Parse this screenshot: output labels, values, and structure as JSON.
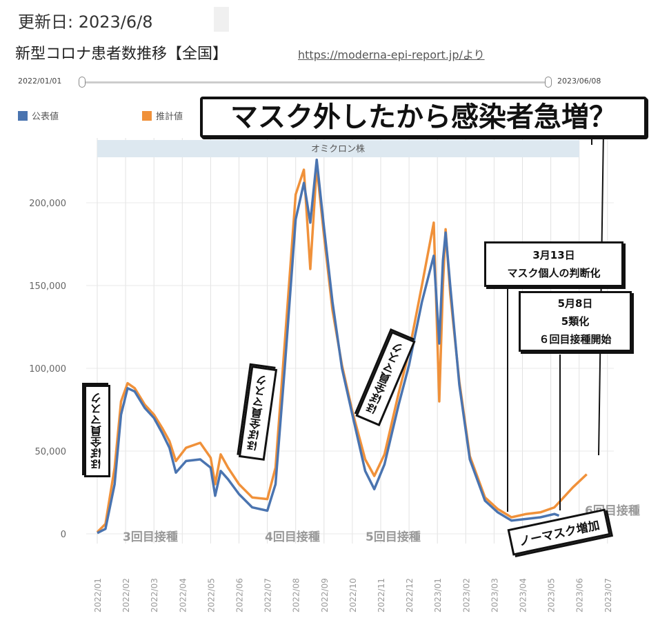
{
  "header": {
    "updated": "更新日: 2023/6/8",
    "title": "新型コロナ患者数推移【全国】",
    "source": "https://moderna-epi-report.jp/より"
  },
  "range": {
    "start": "2022/01/01",
    "end": "2023/06/08"
  },
  "headline": "マスク外したから感染者急増？",
  "annotations": {
    "band": "オミクロン株",
    "mask1": "ほぼ全員マスク",
    "mask2": "ほぼ全員マスク",
    "mask3": "ほぼ全員マスク",
    "dose3": "3回目接種",
    "dose4": "4回目接種",
    "dose5": "5回目接種",
    "dose6": "6回目接種",
    "box1": [
      "3月13日",
      "マスク個人の判断化"
    ],
    "box2": [
      "5月8日",
      "5類化",
      "６回目接種開始"
    ],
    "nomask": "ノーマスク増加"
  },
  "colors": {
    "official": "#4a74b0",
    "estimated": "#f0913a"
  },
  "chart_data": {
    "type": "line",
    "legend_position": "top-left",
    "grid": true,
    "ylim": [
      0,
      240000
    ],
    "yticks": [
      "0",
      "50,000",
      "100,000",
      "150,000",
      "200,000"
    ],
    "ytick_values": [
      0,
      50000,
      100000,
      150000,
      200000
    ],
    "xticks": [
      "2022/01",
      "2022/02",
      "2022/03",
      "2022/04",
      "2022/05",
      "2022/06",
      "2022/07",
      "2022/08",
      "2022/09",
      "2022/10",
      "2022/11",
      "2022/12",
      "2023/01",
      "2023/02",
      "2023/03",
      "2023/04",
      "2023/05",
      "2023/06",
      "2023/07"
    ],
    "series": [
      {
        "name": "公表値",
        "x": [
          "2022-01-01",
          "2022-01-10",
          "2022-01-20",
          "2022-01-27",
          "2022-02-03",
          "2022-02-10",
          "2022-02-20",
          "2022-03-01",
          "2022-03-10",
          "2022-03-18",
          "2022-03-25",
          "2022-04-05",
          "2022-04-20",
          "2022-05-01",
          "2022-05-06",
          "2022-05-12",
          "2022-05-20",
          "2022-06-01",
          "2022-06-15",
          "2022-07-01",
          "2022-07-10",
          "2022-07-20",
          "2022-08-01",
          "2022-08-10",
          "2022-08-17",
          "2022-08-24",
          "2022-09-01",
          "2022-09-10",
          "2022-09-20",
          "2022-10-01",
          "2022-10-15",
          "2022-10-25",
          "2022-11-05",
          "2022-11-20",
          "2022-12-01",
          "2022-12-15",
          "2022-12-28",
          "2023-01-03",
          "2023-01-07",
          "2023-01-10",
          "2023-01-15",
          "2023-01-25",
          "2023-02-05",
          "2023-02-20",
          "2023-03-05",
          "2023-03-20",
          "2023-04-05",
          "2023-04-20",
          "2023-05-05",
          "2023-05-10"
        ],
        "y": [
          500,
          3000,
          30000,
          72000,
          88000,
          86000,
          76000,
          70000,
          61000,
          52000,
          37000,
          44000,
          45000,
          40000,
          23000,
          38000,
          33000,
          24000,
          16000,
          14000,
          30000,
          100000,
          190000,
          212000,
          188000,
          226000,
          185000,
          140000,
          100000,
          72000,
          38000,
          27000,
          42000,
          78000,
          102000,
          140000,
          168000,
          115000,
          165000,
          182000,
          150000,
          90000,
          45000,
          20000,
          13000,
          8000,
          9000,
          10000,
          12000,
          11000
        ]
      },
      {
        "name": "推計値",
        "x": [
          "2022-01-01",
          "2022-01-10",
          "2022-01-20",
          "2022-01-27",
          "2022-02-03",
          "2022-02-10",
          "2022-02-20",
          "2022-03-01",
          "2022-03-10",
          "2022-03-18",
          "2022-03-25",
          "2022-04-05",
          "2022-04-20",
          "2022-05-01",
          "2022-05-06",
          "2022-05-12",
          "2022-05-20",
          "2022-06-01",
          "2022-06-15",
          "2022-07-01",
          "2022-07-10",
          "2022-07-20",
          "2022-08-01",
          "2022-08-10",
          "2022-08-17",
          "2022-08-24",
          "2022-09-01",
          "2022-09-10",
          "2022-09-20",
          "2022-10-01",
          "2022-10-15",
          "2022-10-25",
          "2022-11-05",
          "2022-11-20",
          "2022-12-01",
          "2022-12-15",
          "2022-12-28",
          "2023-01-03",
          "2023-01-07",
          "2023-01-10",
          "2023-01-15",
          "2023-01-25",
          "2023-02-05",
          "2023-02-20",
          "2023-03-05",
          "2023-03-20",
          "2023-04-05",
          "2023-04-20",
          "2023-05-05",
          "2023-05-15",
          "2023-05-25",
          "2023-06-09"
        ],
        "y": [
          1000,
          6000,
          40000,
          80000,
          91000,
          88000,
          78000,
          72000,
          64000,
          56000,
          44000,
          52000,
          55000,
          46000,
          30000,
          48000,
          40000,
          30000,
          22000,
          21000,
          40000,
          115000,
          205000,
          220000,
          160000,
          222000,
          180000,
          135000,
          102000,
          74000,
          45000,
          35000,
          48000,
          85000,
          110000,
          150000,
          188000,
          80000,
          150000,
          184000,
          145000,
          92000,
          47000,
          22000,
          15000,
          10000,
          12000,
          13000,
          16000,
          22000,
          28000,
          36000
        ]
      }
    ]
  }
}
